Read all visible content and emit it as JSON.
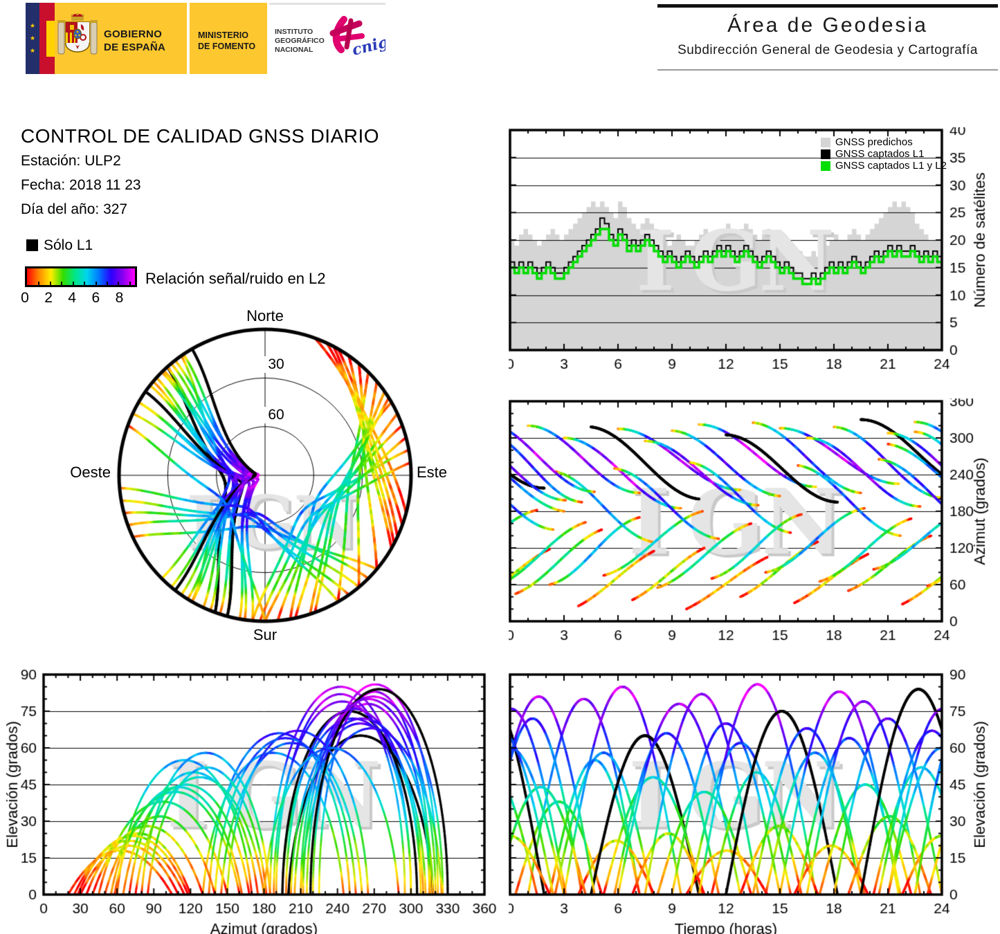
{
  "header": {
    "gobierno_line1": "GOBIERNO",
    "gobierno_line2": "DE ESPAÑA",
    "ministerio_line1": "MINISTERIO",
    "ministerio_line2": "DE FOMENTO",
    "instituto_line1": "INSTITUTO",
    "instituto_line2": "GEOGRÁFICO",
    "instituto_line3": "NACIONAL",
    "cnig_text": "cnig",
    "area_title": "Área de Geodesia",
    "area_subtitle": "Subdirección General de Geodesia y Cartografía"
  },
  "info": {
    "title": "CONTROL DE CALIDAD GNSS DIARIO",
    "station": "Estación: ULP2",
    "date": "Fecha: 2018 11 23",
    "doy": "Día del año: 327"
  },
  "legend": {
    "solo_l1_label": "Sólo L1",
    "colorbar_label": "Relación señal/ruido en L2",
    "colorbar": {
      "vmin": 0,
      "vmax": 9.5,
      "tick_values": [
        0,
        2,
        4,
        6,
        8
      ],
      "minor_tick_step": 1,
      "stops": [
        "#ff0000",
        "#ff8800",
        "#ffee00",
        "#33dd00",
        "#00e688",
        "#00d5ee",
        "#0077ff",
        "#2a00ff",
        "#8800ee",
        "#ff00ff"
      ]
    }
  },
  "watermark": "IGN",
  "colors": {
    "logo_yellow": "#fdc72f",
    "logo_navy": "#232f6b",
    "flag_red": "#c8102e",
    "flag_yellow": "#ffd200",
    "predicted_gray": "#d5d5d5",
    "captured_l1": "#000000",
    "captured_l1_l2": "#00dd00",
    "watermark_gray": "#e5e5e5"
  },
  "chart_data": [
    {
      "id": "sat_count",
      "type": "area-step",
      "title": "",
      "xlabel": "",
      "ylabel": "Número de satélites",
      "xlim": [
        0,
        24
      ],
      "ylim": [
        0,
        40
      ],
      "xticks": [
        0,
        3,
        6,
        9,
        12,
        15,
        18,
        21,
        24
      ],
      "x_minor_step": 1,
      "yticks": [
        0,
        5,
        10,
        15,
        20,
        25,
        30,
        35,
        40
      ],
      "y_minor_step": 5,
      "grid_y": [
        5,
        10,
        15,
        20,
        25,
        30,
        35
      ],
      "legend_position": "top-right-inside",
      "legend": [
        {
          "label": "GNSS predichos",
          "color": "#d5d5d5"
        },
        {
          "label": "GNSS captados L1",
          "color": "#000000"
        },
        {
          "label": "GNSS captados L1 y L2",
          "color": "#00dd00"
        }
      ],
      "t_start": 0,
      "t_step": 0.25,
      "series": [
        {
          "name": "GNSS predichos",
          "color": "#d5d5d5",
          "values": [
            20,
            19,
            21,
            22,
            21,
            20,
            19,
            20,
            21,
            22,
            21,
            20,
            21,
            22,
            23,
            24,
            25,
            26,
            27,
            26,
            27,
            26,
            25,
            24,
            27,
            26,
            24,
            23,
            22,
            23,
            24,
            23,
            22,
            21,
            20,
            19,
            20,
            21,
            20,
            19,
            19,
            20,
            21,
            22,
            21,
            20,
            21,
            22,
            23,
            22,
            21,
            22,
            23,
            22,
            21,
            20,
            21,
            22,
            21,
            20,
            19,
            18,
            17,
            17,
            18,
            17,
            17,
            18,
            17,
            18,
            19,
            20,
            21,
            20,
            20,
            21,
            22,
            21,
            20,
            21,
            22,
            23,
            24,
            25,
            26,
            27,
            26,
            27,
            26,
            25,
            23,
            22,
            21,
            20,
            20,
            20,
            20
          ]
        },
        {
          "name": "GNSS captados L1",
          "color": "#000000",
          "values": [
            16,
            15,
            16,
            15,
            16,
            15,
            14,
            15,
            16,
            15,
            14,
            14,
            15,
            16,
            17,
            18,
            19,
            20,
            21,
            22,
            24,
            23,
            21,
            20,
            22,
            21,
            19,
            20,
            19,
            20,
            21,
            20,
            19,
            18,
            17,
            18,
            17,
            16,
            17,
            18,
            17,
            16,
            17,
            18,
            17,
            18,
            19,
            18,
            19,
            18,
            17,
            18,
            19,
            18,
            17,
            16,
            17,
            18,
            17,
            16,
            15,
            16,
            15,
            14,
            14,
            13,
            13,
            14,
            13,
            14,
            15,
            16,
            15,
            16,
            15,
            16,
            17,
            16,
            15,
            16,
            17,
            18,
            17,
            18,
            19,
            18,
            19,
            18,
            18,
            19,
            18,
            17,
            18,
            17,
            18,
            17,
            17
          ]
        },
        {
          "name": "GNSS captados L1 y L2",
          "color": "#00dd00",
          "values": [
            15,
            14,
            15,
            14,
            15,
            14,
            13,
            14,
            15,
            14,
            13,
            13,
            14,
            15,
            16,
            17,
            18,
            19,
            20,
            21,
            22,
            22,
            20,
            19,
            21,
            20,
            18,
            19,
            18,
            19,
            20,
            19,
            18,
            17,
            16,
            17,
            16,
            15,
            16,
            17,
            16,
            15,
            16,
            17,
            16,
            17,
            18,
            17,
            18,
            17,
            16,
            17,
            18,
            17,
            16,
            15,
            16,
            17,
            16,
            15,
            14,
            15,
            14,
            13,
            13,
            12,
            12,
            13,
            12,
            13,
            14,
            15,
            14,
            15,
            14,
            15,
            16,
            15,
            14,
            15,
            16,
            17,
            16,
            17,
            18,
            17,
            18,
            17,
            17,
            18,
            17,
            16,
            17,
            16,
            17,
            16,
            16
          ]
        }
      ]
    },
    {
      "id": "skyplot",
      "type": "scatter-polar",
      "title": "",
      "directions": {
        "north": "Norte",
        "south": "Sur",
        "east": "Este",
        "west": "Oeste"
      },
      "elevation_rings": [
        0,
        30,
        60
      ],
      "ring_labels": [
        "30",
        "60"
      ],
      "source": "satellite_tracks",
      "color_by": "snr_l2"
    },
    {
      "id": "azimuth_vs_time",
      "type": "scatter",
      "title": "",
      "xlabel": "",
      "ylabel": "Azimut (grados)",
      "xlim": [
        0,
        24
      ],
      "ylim": [
        0,
        360
      ],
      "xticks": [
        0,
        3,
        6,
        9,
        12,
        15,
        18,
        21,
        24
      ],
      "x_minor_step": 1,
      "yticks": [
        0,
        60,
        120,
        180,
        240,
        300,
        360
      ],
      "y_minor_step": 20,
      "grid_y": [
        60,
        120,
        180,
        240,
        300
      ],
      "source": "satellite_tracks",
      "color_by": "snr_l2"
    },
    {
      "id": "elevation_vs_azimuth",
      "type": "scatter",
      "title": "",
      "xlabel": "Azimut (grados)",
      "ylabel": "Elevación (grados)",
      "xlim": [
        0,
        360
      ],
      "ylim": [
        0,
        90
      ],
      "xticks": [
        0,
        30,
        60,
        90,
        120,
        150,
        180,
        210,
        240,
        270,
        300,
        330,
        360
      ],
      "x_minor_step": 10,
      "yticks": [
        0,
        15,
        30,
        45,
        60,
        75,
        90
      ],
      "y_minor_step": 5,
      "grid_y": [
        15,
        30,
        45,
        60,
        75
      ],
      "source": "satellite_tracks",
      "color_by": "snr_l2"
    },
    {
      "id": "elevation_vs_time",
      "type": "scatter",
      "title": "",
      "xlabel": "Tiempo (horas)",
      "ylabel": "Elevación (grados)",
      "xlim": [
        0,
        24
      ],
      "ylim": [
        0,
        90
      ],
      "xticks": [
        0,
        3,
        6,
        9,
        12,
        15,
        18,
        21,
        24
      ],
      "x_minor_step": 1,
      "yticks": [
        0,
        15,
        30,
        45,
        60,
        75,
        90
      ],
      "y_minor_step": 5,
      "grid_y": [
        15,
        30,
        45,
        60,
        75
      ],
      "source": "satellite_tracks",
      "color_by": "snr_l2"
    }
  ],
  "satellite_tracks": [
    {
      "t0": -1.5,
      "dur": 5.5,
      "azr": 310,
      "azs": 195,
      "emax": 72,
      "soff": 0.5
    },
    {
      "t0": 0.3,
      "dur": 4.8,
      "azr": 45,
      "azs": 150,
      "emax": 38,
      "soff": 0.0
    },
    {
      "t0": 1.0,
      "dur": 6.2,
      "azr": 320,
      "azs": 210,
      "emax": 80,
      "soff": 1.0
    },
    {
      "t0": 2.2,
      "dur": 5.0,
      "azr": 60,
      "azs": 170,
      "emax": 55,
      "soff": 0.3
    },
    {
      "t0": 2.5,
      "dur": 5.4,
      "azr": 245,
      "azs": 130,
      "emax": 58,
      "soff": 0.5
    },
    {
      "t0": 3.0,
      "dur": 6.5,
      "azr": 300,
      "azs": 185,
      "emax": 85,
      "soff": 1.2
    },
    {
      "t0": 3.8,
      "dur": 4.2,
      "azr": 25,
      "azs": 115,
      "emax": 22,
      "soff": -0.5
    },
    {
      "t0": 4.5,
      "dur": 6.0,
      "azr": 318,
      "azs": 200,
      "emax": 65,
      "soff": 0.4,
      "black": true
    },
    {
      "t0": 5.2,
      "dur": 5.5,
      "azr": 75,
      "azs": 180,
      "emax": 48,
      "soff": 0.0
    },
    {
      "t0": 5.8,
      "dur": 5.8,
      "azr": 250,
      "azs": 135,
      "emax": 66,
      "soff": 0.8
    },
    {
      "t0": 6.0,
      "dur": 6.8,
      "azr": 315,
      "azs": 215,
      "emax": 78,
      "soff": 1.3
    },
    {
      "t0": 6.8,
      "dur": 4.0,
      "azr": 35,
      "azs": 120,
      "emax": 25,
      "soff": -0.3
    },
    {
      "t0": 7.5,
      "dur": 6.3,
      "azr": 295,
      "azs": 190,
      "emax": 82,
      "soff": 1.1
    },
    {
      "t0": 8.2,
      "dur": 5.2,
      "azr": 55,
      "azs": 160,
      "emax": 42,
      "soff": 0.2
    },
    {
      "t0": 9.0,
      "dur": 6.0,
      "azr": 312,
      "azs": 205,
      "emax": 70,
      "soff": 0.8
    },
    {
      "t0": 9.8,
      "dur": 4.5,
      "azr": 20,
      "azs": 105,
      "emax": 18,
      "soff": -0.6
    },
    {
      "t0": 10.0,
      "dur": 5.6,
      "azr": 260,
      "azs": 145,
      "emax": 62,
      "soff": 0.7
    },
    {
      "t0": 10.5,
      "dur": 6.5,
      "azr": 322,
      "azs": 220,
      "emax": 86,
      "soff": 1.4
    },
    {
      "t0": 11.2,
      "dur": 5.0,
      "azr": 70,
      "azs": 175,
      "emax": 50,
      "soff": 0.1
    },
    {
      "t0": 12.0,
      "dur": 6.2,
      "azr": 305,
      "azs": 195,
      "emax": 75,
      "soff": 1.0,
      "black": true
    },
    {
      "t0": 12.8,
      "dur": 4.3,
      "azr": 40,
      "azs": 130,
      "emax": 28,
      "soff": -0.4
    },
    {
      "t0": 13.5,
      "dur": 6.0,
      "azr": 325,
      "azs": 210,
      "emax": 68,
      "soff": 0.7
    },
    {
      "t0": 14.2,
      "dur": 5.5,
      "azr": 80,
      "azs": 185,
      "emax": 58,
      "soff": 0.3
    },
    {
      "t0": 15.0,
      "dur": 6.6,
      "azr": 316,
      "azs": 225,
      "emax": 83,
      "soff": 1.2
    },
    {
      "t0": 15.8,
      "dur": 4.1,
      "azr": 30,
      "azs": 110,
      "emax": 20,
      "soff": -0.5
    },
    {
      "t0": 16.0,
      "dur": 5.7,
      "azr": 255,
      "azs": 140,
      "emax": 64,
      "soff": 0.75
    },
    {
      "t0": 16.5,
      "dur": 6.3,
      "azr": 300,
      "azs": 188,
      "emax": 79,
      "soff": 1.1
    },
    {
      "t0": 17.2,
      "dur": 5.1,
      "azr": 65,
      "azs": 168,
      "emax": 45,
      "soff": 0.0
    },
    {
      "t0": 18.0,
      "dur": 6.0,
      "azr": 318,
      "azs": 202,
      "emax": 72,
      "soff": 0.9
    },
    {
      "t0": 18.8,
      "dur": 4.6,
      "azr": 50,
      "azs": 140,
      "emax": 32,
      "soff": -0.2
    },
    {
      "t0": 19.5,
      "dur": 6.4,
      "azr": 330,
      "azs": 218,
      "emax": 84,
      "soff": 1.3,
      "black": true
    },
    {
      "t0": 20.2,
      "dur": 5.3,
      "azr": 85,
      "azs": 182,
      "emax": 52,
      "soff": 0.2
    },
    {
      "t0": 20.5,
      "dur": 5.9,
      "azr": 265,
      "azs": 150,
      "emax": 67,
      "soff": 0.9
    },
    {
      "t0": 21.0,
      "dur": 6.1,
      "azr": 308,
      "azs": 198,
      "emax": 76,
      "soff": 1.0
    },
    {
      "t0": 21.8,
      "dur": 4.4,
      "azr": 28,
      "azs": 118,
      "emax": 24,
      "soff": -0.4
    },
    {
      "t0": 22.5,
      "dur": 6.2,
      "azr": 326,
      "azs": 212,
      "emax": 81,
      "soff": 1.2
    },
    {
      "t0": 23.2,
      "dur": 5.0,
      "azr": 58,
      "azs": 162,
      "emax": 44,
      "soff": 0.1
    },
    {
      "t0": -3.0,
      "dur": 6.0,
      "azr": 290,
      "azs": 180,
      "emax": 60,
      "soff": 0.6
    }
  ]
}
